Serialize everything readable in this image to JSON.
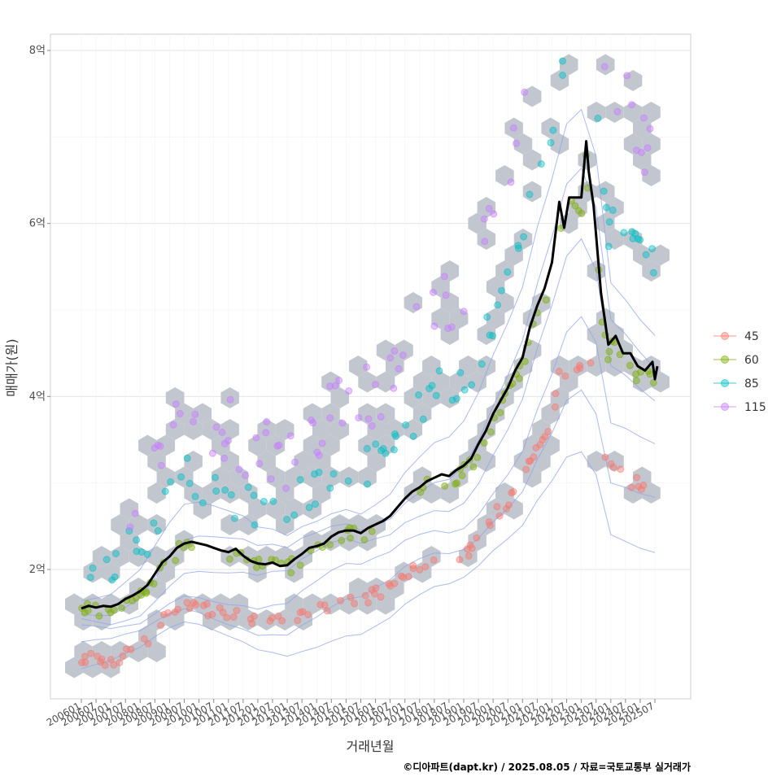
{
  "chart_data": {
    "type": "scatter",
    "xlabel": "거래년월",
    "ylabel": "매매가(원)",
    "caption": "©디아파트(dapt.kr) / 2025.08.05 / 자료=국토교통부 실거래가",
    "ylim": [
      0.5,
      8.2
    ],
    "y_ticks": [
      {
        "value": 2,
        "label": "2억"
      },
      {
        "value": 4,
        "label": "4억"
      },
      {
        "value": 6,
        "label": "6억"
      },
      {
        "value": 8,
        "label": "8억"
      }
    ],
    "x_start": "2006-01",
    "x_end": "2025-07",
    "x_ticks": [
      "200601",
      "200607",
      "200701",
      "200707",
      "200801",
      "200807",
      "200901",
      "200907",
      "201001",
      "201007",
      "201101",
      "201107",
      "201201",
      "201207",
      "201301",
      "201307",
      "201401",
      "201407",
      "201501",
      "201507",
      "201601",
      "201607",
      "201701",
      "201707",
      "201801",
      "201807",
      "201901",
      "201907",
      "202001",
      "202007",
      "202101",
      "202107",
      "202201",
      "202207",
      "202301",
      "202307",
      "202401",
      "202407",
      "202501",
      "202507"
    ],
    "grid": true,
    "legend_position": "right",
    "legend": [
      {
        "label": "45",
        "color": "#F8766D"
      },
      {
        "label": "60",
        "color": "#7CAE00"
      },
      {
        "label": "85",
        "color": "#00BFC4"
      },
      {
        "label": "115",
        "color": "#C77CFF"
      }
    ],
    "hexbin_color": "#c2c7cf",
    "density_contour_color": "#8fa3e8",
    "trend_line": {
      "name": "",
      "color": "#000000",
      "points": [
        [
          "2006-01",
          1.55
        ],
        [
          "2006-04",
          1.58
        ],
        [
          "2006-07",
          1.56
        ],
        [
          "2006-10",
          1.58
        ],
        [
          "2007-01",
          1.57
        ],
        [
          "2007-04",
          1.6
        ],
        [
          "2007-07",
          1.66
        ],
        [
          "2007-10",
          1.7
        ],
        [
          "2008-01",
          1.75
        ],
        [
          "2008-04",
          1.82
        ],
        [
          "2008-07",
          1.95
        ],
        [
          "2008-10",
          2.08
        ],
        [
          "2009-01",
          2.15
        ],
        [
          "2009-04",
          2.25
        ],
        [
          "2009-07",
          2.3
        ],
        [
          "2009-10",
          2.32
        ],
        [
          "2010-01",
          2.3
        ],
        [
          "2010-04",
          2.28
        ],
        [
          "2010-07",
          2.25
        ],
        [
          "2010-10",
          2.22
        ],
        [
          "2011-01",
          2.2
        ],
        [
          "2011-04",
          2.24
        ],
        [
          "2011-07",
          2.16
        ],
        [
          "2011-10",
          2.1
        ],
        [
          "2012-01",
          2.07
        ],
        [
          "2012-04",
          2.06
        ],
        [
          "2012-07",
          2.08
        ],
        [
          "2012-10",
          2.04
        ],
        [
          "2013-01",
          2.05
        ],
        [
          "2013-04",
          2.12
        ],
        [
          "2013-07",
          2.18
        ],
        [
          "2013-10",
          2.25
        ],
        [
          "2014-01",
          2.27
        ],
        [
          "2014-04",
          2.3
        ],
        [
          "2014-07",
          2.38
        ],
        [
          "2014-10",
          2.43
        ],
        [
          "2015-01",
          2.45
        ],
        [
          "2015-04",
          2.45
        ],
        [
          "2015-07",
          2.42
        ],
        [
          "2015-10",
          2.48
        ],
        [
          "2016-01",
          2.52
        ],
        [
          "2016-04",
          2.56
        ],
        [
          "2016-07",
          2.62
        ],
        [
          "2016-10",
          2.72
        ],
        [
          "2017-01",
          2.82
        ],
        [
          "2017-04",
          2.9
        ],
        [
          "2017-07",
          2.95
        ],
        [
          "2017-10",
          3.02
        ],
        [
          "2018-01",
          3.06
        ],
        [
          "2018-04",
          3.1
        ],
        [
          "2018-07",
          3.08
        ],
        [
          "2018-10",
          3.15
        ],
        [
          "2019-01",
          3.2
        ],
        [
          "2019-04",
          3.28
        ],
        [
          "2019-07",
          3.45
        ],
        [
          "2019-10",
          3.6
        ],
        [
          "2020-01",
          3.8
        ],
        [
          "2020-04",
          3.95
        ],
        [
          "2020-07",
          4.1
        ],
        [
          "2020-10",
          4.3
        ],
        [
          "2021-01",
          4.45
        ],
        [
          "2021-04",
          4.8
        ],
        [
          "2021-07",
          5.05
        ],
        [
          "2021-10",
          5.25
        ],
        [
          "2022-01",
          5.55
        ],
        [
          "2022-04",
          6.25
        ],
        [
          "2022-06",
          5.95
        ],
        [
          "2022-08",
          6.3
        ],
        [
          "2022-10",
          6.3
        ],
        [
          "2023-01",
          6.3
        ],
        [
          "2023-03",
          6.95
        ],
        [
          "2023-04",
          6.6
        ],
        [
          "2023-06",
          6.2
        ],
        [
          "2023-09",
          5.2
        ],
        [
          "2023-12",
          4.6
        ],
        [
          "2024-03",
          4.7
        ],
        [
          "2024-06",
          4.5
        ],
        [
          "2024-09",
          4.5
        ],
        [
          "2024-12",
          4.35
        ],
        [
          "2025-03",
          4.3
        ],
        [
          "2025-06",
          4.4
        ],
        [
          "2025-07",
          4.2
        ],
        [
          "2025-08",
          4.35
        ]
      ]
    }
  }
}
